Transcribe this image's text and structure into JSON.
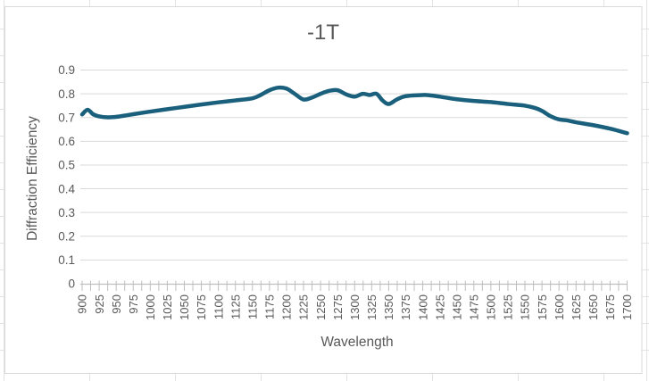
{
  "chart_chrome": {
    "frame_border_color": "#D9D9D9",
    "plot_gridline_color": "#D9D9D9",
    "axis_line_color": "#BFBFBF",
    "text_color": "#595959",
    "spreadsheet_gridline_color": "#E3E3E3",
    "background_color": "#FFFFFF"
  },
  "chart_data": {
    "type": "line",
    "title": "-1T",
    "xlabel": "Wavelength",
    "ylabel": "Diffraction Efficiency",
    "xlim": [
      900,
      1700
    ],
    "ylim": [
      0,
      0.9
    ],
    "grid": true,
    "legend": false,
    "x_tick_labels": [
      "900",
      "925",
      "950",
      "975",
      "1000",
      "1025",
      "1050",
      "1075",
      "1100",
      "1125",
      "1150",
      "1175",
      "1200",
      "1225",
      "1250",
      "1275",
      "1300",
      "1325",
      "1350",
      "1375",
      "1400",
      "1425",
      "1450",
      "1475",
      "1500",
      "1525",
      "1550",
      "1575",
      "1600",
      "1625",
      "1650",
      "1675",
      "1700"
    ],
    "y_tick_labels": [
      "0",
      "0.1",
      "0.2",
      "0.3",
      "0.4",
      "0.5",
      "0.6",
      "0.7",
      "0.8",
      "0.9"
    ],
    "series": [
      {
        "name": "-1T",
        "color": "#1A607D",
        "stroke_width": 4.5,
        "smooth": true,
        "points": [
          [
            900,
            0.713
          ],
          [
            908,
            0.733
          ],
          [
            916,
            0.714
          ],
          [
            925,
            0.705
          ],
          [
            938,
            0.701
          ],
          [
            950,
            0.703
          ],
          [
            962,
            0.708
          ],
          [
            975,
            0.714
          ],
          [
            1000,
            0.725
          ],
          [
            1025,
            0.735
          ],
          [
            1050,
            0.745
          ],
          [
            1075,
            0.755
          ],
          [
            1100,
            0.764
          ],
          [
            1125,
            0.772
          ],
          [
            1150,
            0.781
          ],
          [
            1162,
            0.795
          ],
          [
            1175,
            0.815
          ],
          [
            1188,
            0.826
          ],
          [
            1200,
            0.822
          ],
          [
            1212,
            0.8
          ],
          [
            1225,
            0.776
          ],
          [
            1238,
            0.785
          ],
          [
            1250,
            0.8
          ],
          [
            1262,
            0.812
          ],
          [
            1275,
            0.815
          ],
          [
            1288,
            0.797
          ],
          [
            1300,
            0.788
          ],
          [
            1312,
            0.8
          ],
          [
            1322,
            0.795
          ],
          [
            1332,
            0.8
          ],
          [
            1341,
            0.772
          ],
          [
            1350,
            0.757
          ],
          [
            1362,
            0.776
          ],
          [
            1375,
            0.79
          ],
          [
            1400,
            0.795
          ],
          [
            1412,
            0.793
          ],
          [
            1425,
            0.788
          ],
          [
            1438,
            0.782
          ],
          [
            1450,
            0.777
          ],
          [
            1475,
            0.77
          ],
          [
            1500,
            0.765
          ],
          [
            1525,
            0.757
          ],
          [
            1550,
            0.75
          ],
          [
            1565,
            0.74
          ],
          [
            1575,
            0.728
          ],
          [
            1588,
            0.705
          ],
          [
            1600,
            0.692
          ],
          [
            1612,
            0.688
          ],
          [
            1625,
            0.68
          ],
          [
            1650,
            0.668
          ],
          [
            1675,
            0.653
          ],
          [
            1700,
            0.634
          ]
        ]
      }
    ]
  }
}
